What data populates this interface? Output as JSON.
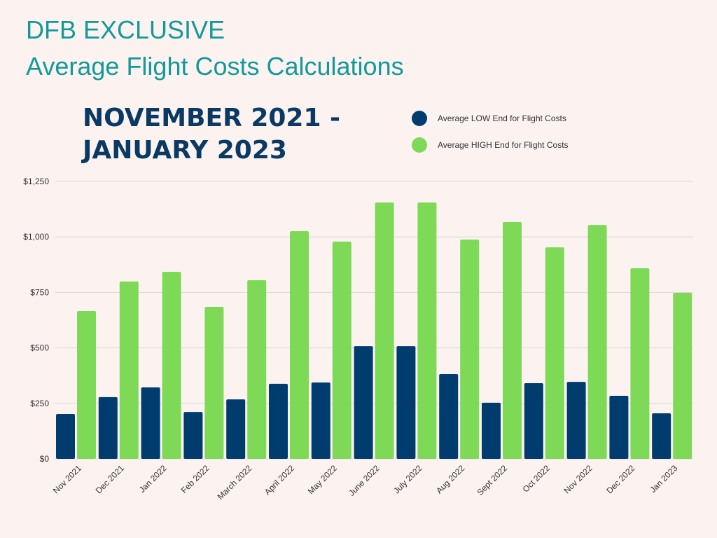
{
  "header": {
    "line1": "DFB EXCLUSIVE",
    "line2": "Average Flight Costs Calculations"
  },
  "subtitle": {
    "line1": "NOVEMBER 2021 -",
    "line2": "JANUARY 2023"
  },
  "chart_data": {
    "type": "bar",
    "title": "Average Flight Costs Calculations",
    "xlabel": "",
    "ylabel": "",
    "ylim": [
      0,
      1250
    ],
    "yticks": [
      0,
      250,
      500,
      750,
      1000,
      1250
    ],
    "ytick_labels": [
      "$0",
      "$250",
      "$500",
      "$750",
      "$1,000",
      "$1,250"
    ],
    "grid": true,
    "legend_position": "top-right",
    "categories": [
      "Nov 2021",
      "Dec 2021",
      "Jan 2022",
      "Feb 2022",
      "March 2022",
      "April 2022",
      "May 2022",
      "June 2022",
      "July 2022",
      "Aug 2022",
      "Sept 2022",
      "Oct 2022",
      "Nov 2022",
      "Dec 2022",
      "Jan 2023"
    ],
    "series": [
      {
        "name": "Average LOW End for Flight Costs",
        "color": "#003d6e",
        "values": [
          202,
          278,
          322,
          211,
          268,
          338,
          344,
          508,
          508,
          382,
          253,
          341,
          347,
          284,
          205
        ]
      },
      {
        "name": "Average HIGH End for Flight Costs",
        "color": "#7ed957",
        "values": [
          666,
          799,
          843,
          685,
          805,
          1026,
          979,
          1155,
          1155,
          988,
          1067,
          953,
          1054,
          859,
          748
        ]
      }
    ]
  }
}
